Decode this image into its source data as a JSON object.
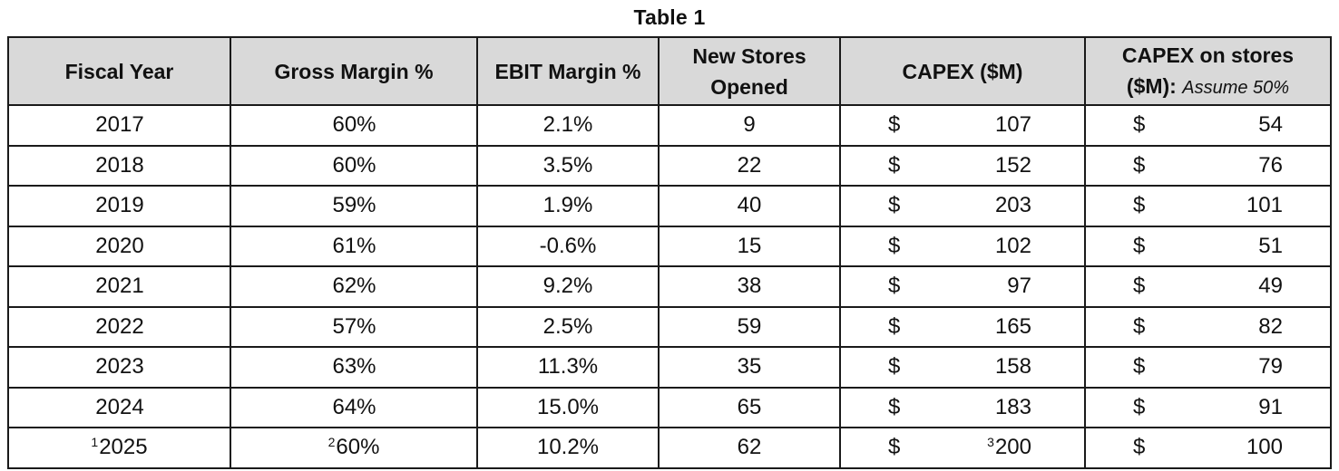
{
  "title": "Table 1",
  "headers": {
    "fiscal_year": "Fiscal Year",
    "gross_margin": "Gross Margin %",
    "ebit_margin": "EBIT Margin %",
    "new_stores_line1": "New Stores",
    "new_stores_line2": "Opened",
    "capex": "CAPEX ($M)",
    "capex_stores_line1": "CAPEX on stores",
    "capex_stores_line2": "($M):",
    "capex_stores_note": "Assume 50%"
  },
  "rows": [
    {
      "year": "2017",
      "year_sup": "",
      "gross": "60%",
      "gross_sup": "",
      "ebit": "2.1%",
      "stores": "9",
      "capex_cur": "$",
      "capex": "107",
      "capex_sup": "",
      "capex_st_cur": "$",
      "capex_st": "54"
    },
    {
      "year": "2018",
      "year_sup": "",
      "gross": "60%",
      "gross_sup": "",
      "ebit": "3.5%",
      "stores": "22",
      "capex_cur": "$",
      "capex": "152",
      "capex_sup": "",
      "capex_st_cur": "$",
      "capex_st": "76"
    },
    {
      "year": "2019",
      "year_sup": "",
      "gross": "59%",
      "gross_sup": "",
      "ebit": "1.9%",
      "stores": "40",
      "capex_cur": "$",
      "capex": "203",
      "capex_sup": "",
      "capex_st_cur": "$",
      "capex_st": "101"
    },
    {
      "year": "2020",
      "year_sup": "",
      "gross": "61%",
      "gross_sup": "",
      "ebit": "-0.6%",
      "stores": "15",
      "capex_cur": "$",
      "capex": "102",
      "capex_sup": "",
      "capex_st_cur": "$",
      "capex_st": "51"
    },
    {
      "year": "2021",
      "year_sup": "",
      "gross": "62%",
      "gross_sup": "",
      "ebit": "9.2%",
      "stores": "38",
      "capex_cur": "$",
      "capex": "97",
      "capex_sup": "",
      "capex_st_cur": "$",
      "capex_st": "49"
    },
    {
      "year": "2022",
      "year_sup": "",
      "gross": "57%",
      "gross_sup": "",
      "ebit": "2.5%",
      "stores": "59",
      "capex_cur": "$",
      "capex": "165",
      "capex_sup": "",
      "capex_st_cur": "$",
      "capex_st": "82"
    },
    {
      "year": "2023",
      "year_sup": "",
      "gross": "63%",
      "gross_sup": "",
      "ebit": "11.3%",
      "stores": "35",
      "capex_cur": "$",
      "capex": "158",
      "capex_sup": "",
      "capex_st_cur": "$",
      "capex_st": "79"
    },
    {
      "year": "2024",
      "year_sup": "",
      "gross": "64%",
      "gross_sup": "",
      "ebit": "15.0%",
      "stores": "65",
      "capex_cur": "$",
      "capex": "183",
      "capex_sup": "",
      "capex_st_cur": "$",
      "capex_st": "91"
    },
    {
      "year": "2025",
      "year_sup": "1",
      "gross": "60%",
      "gross_sup": "2",
      "ebit": "10.2%",
      "stores": "62",
      "capex_cur": "$",
      "capex": "200",
      "capex_sup": "3",
      "capex_st_cur": "$",
      "capex_st": "100"
    }
  ],
  "colors": {
    "header_bg": "#d9d9d9",
    "border": "#1a1a1a"
  }
}
